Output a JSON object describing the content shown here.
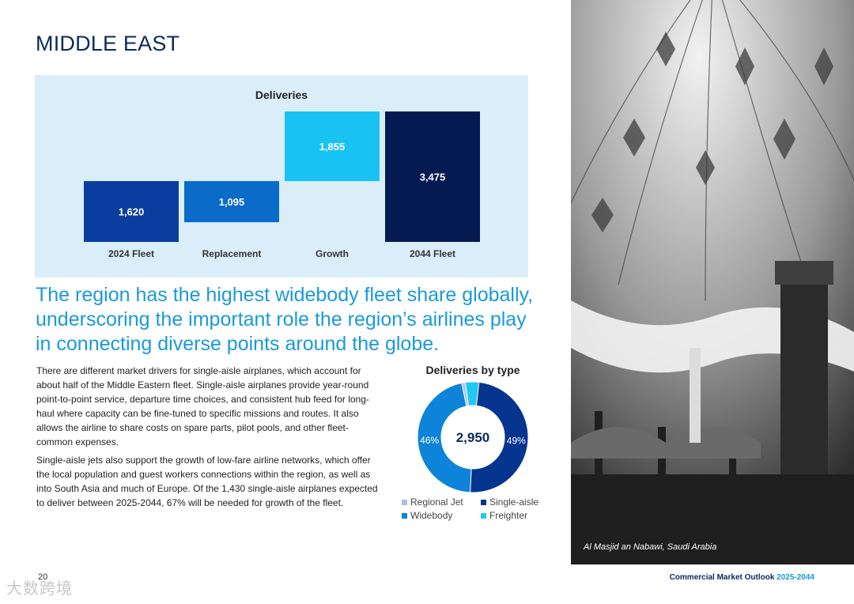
{
  "section_title": "MIDDLE EAST",
  "chart_data": [
    {
      "type": "bar",
      "title": "Deliveries",
      "categories": [
        "2024 Fleet",
        "Replacement",
        "Growth",
        "2044 Fleet"
      ],
      "values": [
        1620,
        1095,
        1855,
        3475
      ],
      "labels": [
        "1,620",
        "1,095",
        "1,855",
        "3,475"
      ],
      "colors": [
        "#0a3d9e",
        "#0a6bc9",
        "#18c3f3",
        "#061a52"
      ],
      "ylim": [
        0,
        3600
      ]
    },
    {
      "type": "pie",
      "title": "Deliveries by type",
      "center_label": "2,950",
      "slices": [
        {
          "name": "Regional Jet",
          "percent": 1,
          "color": "#a7c4e6"
        },
        {
          "name": "Single-aisle",
          "percent": 49,
          "color": "#06358f",
          "label": "49%"
        },
        {
          "name": "Widebody",
          "percent": 46,
          "color": "#0d84d9",
          "label": "46%"
        },
        {
          "name": "Freighter",
          "percent": 4,
          "color": "#22c8f2"
        }
      ]
    }
  ],
  "headline": "The region has the highest widebody fleet share globally, underscoring the important role the region’s airlines play in connecting diverse points around the globe.",
  "paragraphs": [
    "There are different market drivers for single-aisle airplanes, which account for about half of the Middle Eastern fleet. Single-aisle airplanes provide year-round point-to-point service, departure time choices, and consistent hub feed for long-haul where capacity can be fine-tuned to specific missions and routes. It also allows the airline to share costs on spare parts, pilot pools, and other fleet-common expenses.",
    "Single-aisle jets also support the growth of low-fare airline networks, which offer the local population and guest workers connections within the region, as well as into South Asia and much of Europe. Of the 1,430 single-aisle airplanes expected to deliver between 2025-2044, 67% will be needed for growth of the fleet."
  ],
  "photo_caption": "Al Masjid an Nabawi, Saudi Arabia",
  "page_number": "20",
  "watermark": "大数跨境",
  "footer": {
    "title": "Commercial Market Outlook",
    "years": "2025-2044"
  }
}
